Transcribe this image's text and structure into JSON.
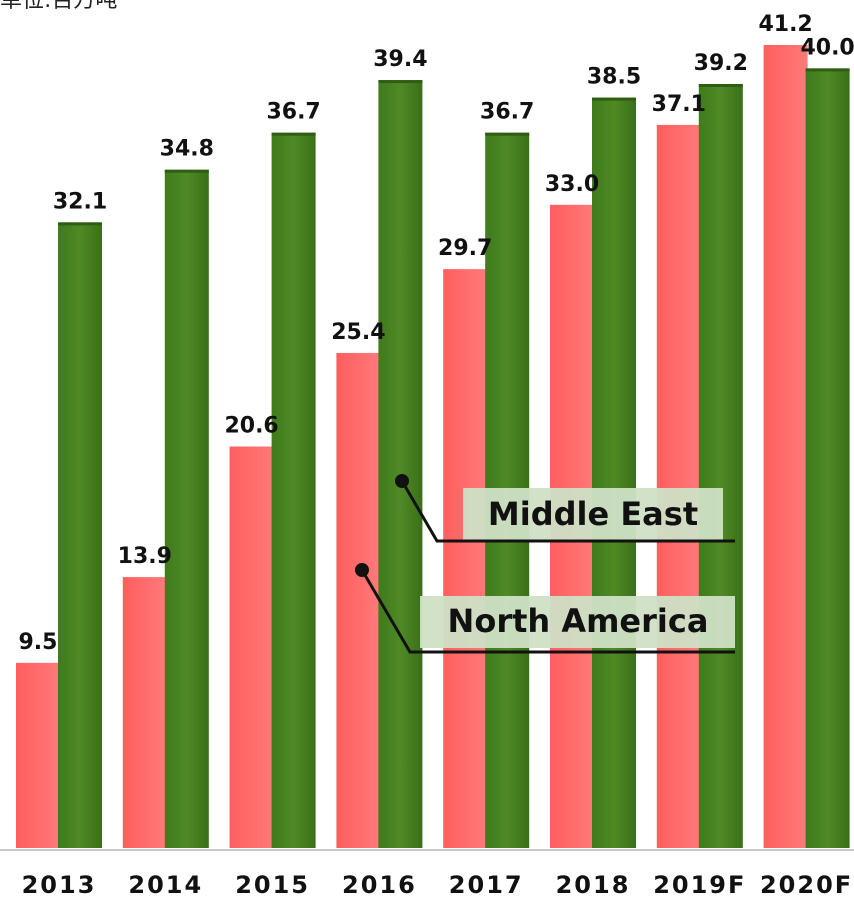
{
  "unit_note": "单位:百万吨",
  "chart_data": {
    "type": "bar",
    "title": "",
    "xlabel": "",
    "ylabel": "",
    "categories": [
      "2013",
      "2014",
      "2015",
      "2016",
      "2017",
      "2018",
      "2019F",
      "2020F"
    ],
    "series": [
      {
        "name": "North America",
        "values": [
          9.5,
          13.9,
          20.6,
          25.4,
          29.7,
          33.0,
          37.1,
          41.2
        ],
        "color": "#ff6666"
      },
      {
        "name": "Middle East",
        "values": [
          32.1,
          34.8,
          36.7,
          39.4,
          36.7,
          38.5,
          39.2,
          40.0
        ],
        "color": "#4a8022"
      }
    ],
    "value_labels": {
      "North America": [
        "9.5",
        "13.9",
        "20.6",
        "25.4",
        "29.7",
        "33.0",
        "37.1",
        "41.2"
      ],
      "Middle East": [
        "32.1",
        "34.8",
        "36.7",
        "39.4",
        "36.7",
        "38.5",
        "39.2",
        "40.0"
      ]
    },
    "ylim": [
      0,
      41.2
    ],
    "grid": false,
    "legend": "inline callouts, center-right"
  }
}
